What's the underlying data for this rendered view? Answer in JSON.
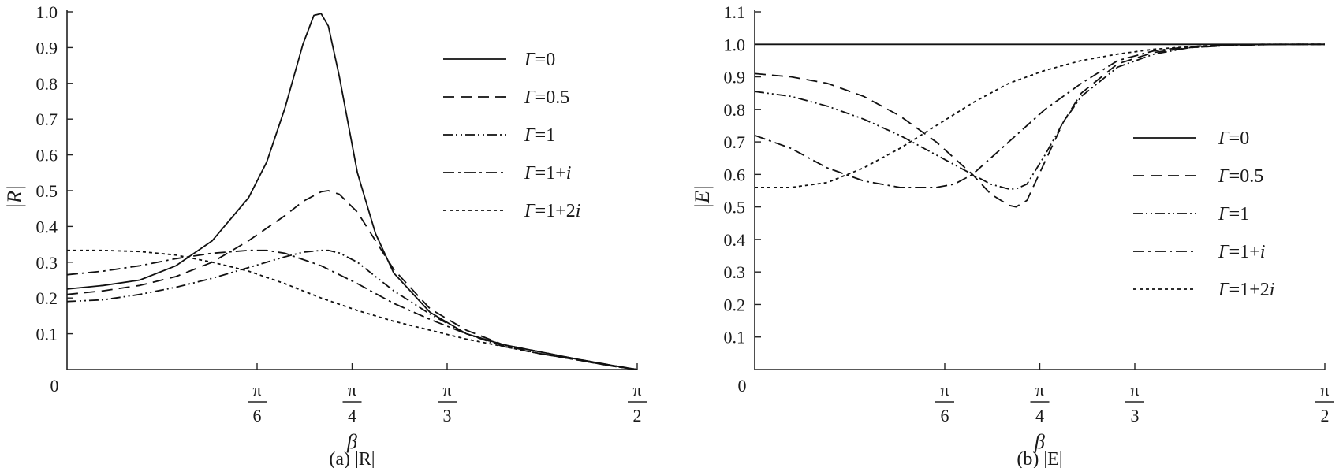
{
  "chart_data": [
    {
      "type": "line",
      "caption": "(a) |R|",
      "ylabel": "|R|",
      "xlabel": "β",
      "xlim": [
        0,
        1.5708
      ],
      "ylim": [
        0,
        1.0
      ],
      "yticks": [
        {
          "value": 0.1,
          "label": "0.1"
        },
        {
          "value": 0.2,
          "label": "0.2"
        },
        {
          "value": 0.3,
          "label": "0.3"
        },
        {
          "value": 0.4,
          "label": "0.4"
        },
        {
          "value": 0.5,
          "label": "0.5"
        },
        {
          "value": 0.6,
          "label": "0.6"
        },
        {
          "value": 0.7,
          "label": "0.7"
        },
        {
          "value": 0.8,
          "label": "0.8"
        },
        {
          "value": 0.9,
          "label": "0.9"
        },
        {
          "value": 1.0,
          "label": "1.0"
        }
      ],
      "origin_label": "0",
      "xticks": [
        {
          "value": 0.5236,
          "num": "π",
          "den": "6"
        },
        {
          "value": 0.7854,
          "num": "π",
          "den": "4"
        },
        {
          "value": 1.0472,
          "num": "π",
          "den": "3"
        },
        {
          "value": 1.5708,
          "num": "π",
          "den": "2"
        }
      ],
      "grid": false,
      "legend_position": "top-right",
      "series": [
        {
          "name": "Γ=0",
          "label_main": "Γ",
          "label_rest": "=0",
          "label_italic": "",
          "dash": "solid",
          "x": [
            0,
            0.1,
            0.2,
            0.3,
            0.4,
            0.5,
            0.55,
            0.6,
            0.65,
            0.68,
            0.7,
            0.72,
            0.75,
            0.8,
            0.85,
            0.9,
            1.0,
            1.1,
            1.2,
            1.3,
            1.4,
            1.5,
            1.5708
          ],
          "y": [
            0.225,
            0.235,
            0.25,
            0.29,
            0.36,
            0.48,
            0.58,
            0.73,
            0.91,
            0.99,
            0.995,
            0.96,
            0.82,
            0.55,
            0.38,
            0.27,
            0.16,
            0.1,
            0.07,
            0.05,
            0.03,
            0.012,
            0.0
          ]
        },
        {
          "name": "Γ=0.5",
          "label_main": "Γ",
          "label_rest": "=0.5",
          "label_italic": "",
          "dash": "14,8",
          "x": [
            0,
            0.1,
            0.2,
            0.3,
            0.4,
            0.5,
            0.6,
            0.65,
            0.7,
            0.72,
            0.75,
            0.8,
            0.85,
            0.9,
            1.0,
            1.1,
            1.2,
            1.3,
            1.4,
            1.5,
            1.5708
          ],
          "y": [
            0.21,
            0.22,
            0.235,
            0.26,
            0.3,
            0.36,
            0.43,
            0.47,
            0.497,
            0.5,
            0.49,
            0.44,
            0.36,
            0.28,
            0.17,
            0.11,
            0.07,
            0.05,
            0.03,
            0.012,
            0.0
          ]
        },
        {
          "name": "Γ=1",
          "label_main": "Γ",
          "label_rest": "=1",
          "label_italic": "",
          "dash": "12,4,2,4,2,4",
          "x": [
            0,
            0.1,
            0.2,
            0.3,
            0.4,
            0.5,
            0.6,
            0.65,
            0.7,
            0.72,
            0.75,
            0.8,
            0.85,
            0.9,
            1.0,
            1.1,
            1.2,
            1.3,
            1.4,
            1.5,
            1.5708
          ],
          "y": [
            0.19,
            0.195,
            0.21,
            0.23,
            0.255,
            0.285,
            0.315,
            0.328,
            0.333,
            0.333,
            0.326,
            0.3,
            0.26,
            0.22,
            0.155,
            0.1,
            0.065,
            0.045,
            0.028,
            0.01,
            0.0
          ]
        },
        {
          "name": "Γ=1+i",
          "label_main": "Γ",
          "label_rest": "=1+",
          "label_italic": "i",
          "dash": "14,5,3,5",
          "x": [
            0,
            0.1,
            0.2,
            0.3,
            0.4,
            0.5,
            0.55,
            0.6,
            0.7,
            0.8,
            0.9,
            1.0,
            1.1,
            1.2,
            1.3,
            1.4,
            1.5,
            1.5708
          ],
          "y": [
            0.265,
            0.275,
            0.29,
            0.31,
            0.325,
            0.333,
            0.333,
            0.325,
            0.29,
            0.24,
            0.185,
            0.14,
            0.1,
            0.068,
            0.045,
            0.028,
            0.01,
            0.0
          ]
        },
        {
          "name": "Γ=1+2i",
          "label_main": "Γ",
          "label_rest": "=1+2",
          "label_italic": "i",
          "dash": "4,4",
          "x": [
            0,
            0.1,
            0.2,
            0.3,
            0.4,
            0.5,
            0.6,
            0.7,
            0.8,
            0.9,
            1.0,
            1.1,
            1.2,
            1.3,
            1.4,
            1.5,
            1.5708
          ],
          "y": [
            0.333,
            0.333,
            0.33,
            0.32,
            0.3,
            0.275,
            0.24,
            0.2,
            0.165,
            0.135,
            0.11,
            0.085,
            0.065,
            0.045,
            0.028,
            0.01,
            0.0
          ]
        }
      ]
    },
    {
      "type": "line",
      "caption": "(b) |E|",
      "ylabel": "|E|",
      "xlabel": "β",
      "xlim": [
        0,
        1.5708
      ],
      "ylim": [
        0,
        1.1
      ],
      "yticks": [
        {
          "value": 0.1,
          "label": "0.1"
        },
        {
          "value": 0.2,
          "label": "0.2"
        },
        {
          "value": 0.3,
          "label": "0.3"
        },
        {
          "value": 0.4,
          "label": "0.4"
        },
        {
          "value": 0.5,
          "label": "0.5"
        },
        {
          "value": 0.6,
          "label": "0.6"
        },
        {
          "value": 0.7,
          "label": "0.7"
        },
        {
          "value": 0.8,
          "label": "0.8"
        },
        {
          "value": 0.9,
          "label": "0.9"
        },
        {
          "value": 1.0,
          "label": "1.0"
        },
        {
          "value": 1.1,
          "label": "1.1"
        }
      ],
      "origin_label": "0",
      "xticks": [
        {
          "value": 0.5236,
          "num": "π",
          "den": "6"
        },
        {
          "value": 0.7854,
          "num": "π",
          "den": "4"
        },
        {
          "value": 1.0472,
          "num": "π",
          "den": "3"
        },
        {
          "value": 1.5708,
          "num": "π",
          "den": "2"
        }
      ],
      "grid": false,
      "legend_position": "right",
      "series": [
        {
          "name": "Γ=0",
          "label_main": "Γ",
          "label_rest": "=0",
          "label_italic": "",
          "dash": "solid",
          "x": [
            0,
            1.5708
          ],
          "y": [
            1.0,
            1.0
          ]
        },
        {
          "name": "Γ=0.5",
          "label_main": "Γ",
          "label_rest": "=0.5",
          "label_italic": "",
          "dash": "14,8",
          "x": [
            0,
            0.1,
            0.2,
            0.3,
            0.4,
            0.5,
            0.6,
            0.65,
            0.7,
            0.72,
            0.75,
            0.8,
            0.85,
            0.9,
            1.0,
            1.1,
            1.2,
            1.3,
            1.4,
            1.5,
            1.5708
          ],
          "y": [
            0.91,
            0.9,
            0.88,
            0.84,
            0.78,
            0.7,
            0.6,
            0.54,
            0.505,
            0.5,
            0.52,
            0.64,
            0.76,
            0.85,
            0.94,
            0.975,
            0.99,
            0.996,
            0.999,
            1.0,
            1.0
          ]
        },
        {
          "name": "Γ=1",
          "label_main": "Γ",
          "label_rest": "=1",
          "label_italic": "",
          "dash": "12,4,2,4,2,4",
          "x": [
            0,
            0.1,
            0.2,
            0.3,
            0.4,
            0.5,
            0.6,
            0.65,
            0.7,
            0.72,
            0.75,
            0.8,
            0.85,
            0.9,
            1.0,
            1.1,
            1.2,
            1.3,
            1.4,
            1.5,
            1.5708
          ],
          "y": [
            0.855,
            0.84,
            0.81,
            0.77,
            0.72,
            0.66,
            0.6,
            0.57,
            0.555,
            0.555,
            0.57,
            0.66,
            0.76,
            0.84,
            0.93,
            0.97,
            0.99,
            0.996,
            0.999,
            1.0,
            1.0
          ]
        },
        {
          "name": "Γ=1+i",
          "label_main": "Γ",
          "label_rest": "=1+",
          "label_italic": "i",
          "dash": "14,5,3,5",
          "x": [
            0,
            0.1,
            0.2,
            0.3,
            0.4,
            0.5,
            0.55,
            0.6,
            0.7,
            0.8,
            0.9,
            1.0,
            1.1,
            1.2,
            1.3,
            1.4,
            1.5,
            1.5708
          ],
          "y": [
            0.72,
            0.68,
            0.62,
            0.58,
            0.56,
            0.56,
            0.57,
            0.6,
            0.7,
            0.8,
            0.88,
            0.95,
            0.98,
            0.993,
            0.998,
            1.0,
            1.0,
            1.0
          ]
        },
        {
          "name": "Γ=1+2i",
          "label_main": "Γ",
          "label_rest": "=1+2",
          "label_italic": "i",
          "dash": "4,4",
          "x": [
            0,
            0.1,
            0.2,
            0.3,
            0.4,
            0.5,
            0.6,
            0.7,
            0.8,
            0.9,
            1.0,
            1.1,
            1.2,
            1.3,
            1.4,
            1.5,
            1.5708
          ],
          "y": [
            0.56,
            0.56,
            0.575,
            0.62,
            0.68,
            0.75,
            0.82,
            0.88,
            0.92,
            0.95,
            0.97,
            0.985,
            0.993,
            0.998,
            1.0,
            1.0,
            1.0
          ]
        }
      ]
    }
  ]
}
